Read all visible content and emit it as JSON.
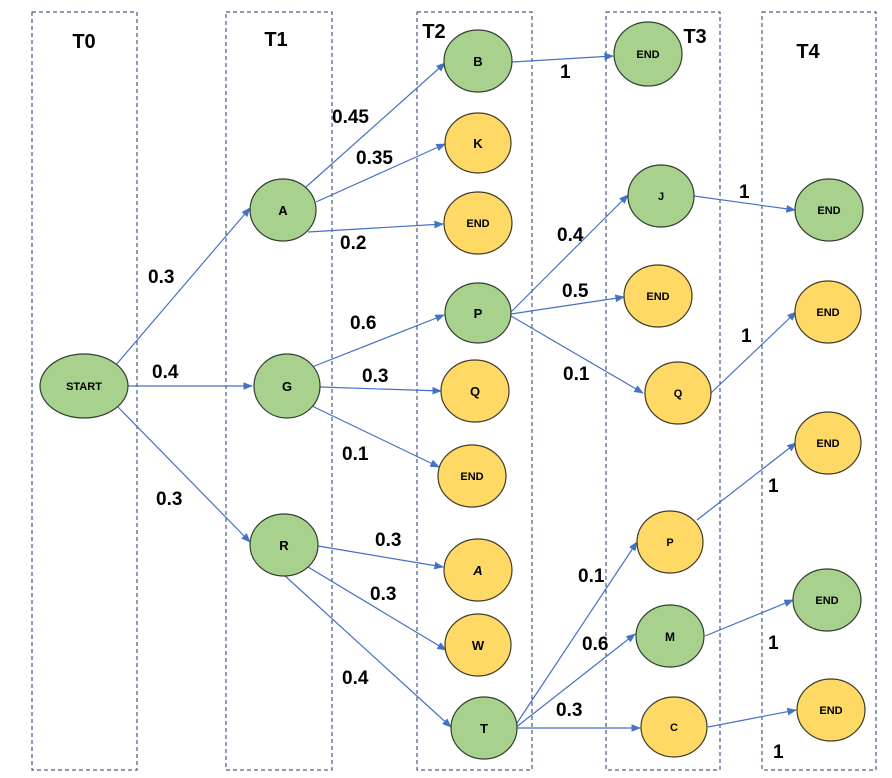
{
  "columns": [
    "T0",
    "T1",
    "T2",
    "T3",
    "T4"
  ],
  "colors": {
    "green": "#a9d18e",
    "yellow": "#ffd966",
    "edge": "#4472c4",
    "column_border": "#1f3864"
  },
  "nodes": {
    "start": {
      "label": "START",
      "color": "green"
    },
    "t1_a": {
      "label": "A",
      "color": "green"
    },
    "t1_g": {
      "label": "G",
      "color": "green"
    },
    "t1_r": {
      "label": "R",
      "color": "green"
    },
    "t2_b": {
      "label": "B",
      "color": "green"
    },
    "t2_k": {
      "label": "K",
      "color": "yellow"
    },
    "t2_end_a": {
      "label": "END",
      "color": "yellow"
    },
    "t2_p": {
      "label": "P",
      "color": "green"
    },
    "t2_q": {
      "label": "Q",
      "color": "yellow"
    },
    "t2_end_g": {
      "label": "END",
      "color": "yellow"
    },
    "t2_a": {
      "label": "A",
      "color": "yellow"
    },
    "t2_w": {
      "label": "W",
      "color": "yellow"
    },
    "t2_t": {
      "label": "T",
      "color": "green"
    },
    "t3_end_b": {
      "label": "END",
      "color": "green"
    },
    "t3_j": {
      "label": "J",
      "color": "green"
    },
    "t3_end_p": {
      "label": "END",
      "color": "yellow"
    },
    "t3_q": {
      "label": "Q",
      "color": "yellow"
    },
    "t3_p": {
      "label": "P",
      "color": "yellow"
    },
    "t3_m": {
      "label": "M",
      "color": "green"
    },
    "t3_c": {
      "label": "C",
      "color": "yellow"
    },
    "t4_end_j": {
      "label": "END",
      "color": "green"
    },
    "t4_end_q": {
      "label": "END",
      "color": "yellow"
    },
    "t4_end_p": {
      "label": "END",
      "color": "yellow"
    },
    "t4_end_m": {
      "label": "END",
      "color": "green"
    },
    "t4_end_c": {
      "label": "END",
      "color": "yellow"
    }
  },
  "edges": [
    {
      "from": "start",
      "to": "t1_a",
      "prob": "0.3"
    },
    {
      "from": "start",
      "to": "t1_g",
      "prob": "0.4"
    },
    {
      "from": "start",
      "to": "t1_r",
      "prob": "0.3"
    },
    {
      "from": "t1_a",
      "to": "t2_b",
      "prob": "0.45"
    },
    {
      "from": "t1_a",
      "to": "t2_k",
      "prob": "0.35"
    },
    {
      "from": "t1_a",
      "to": "t2_end_a",
      "prob": "0.2"
    },
    {
      "from": "t1_g",
      "to": "t2_p",
      "prob": "0.6"
    },
    {
      "from": "t1_g",
      "to": "t2_q",
      "prob": "0.3"
    },
    {
      "from": "t1_g",
      "to": "t2_end_g",
      "prob": "0.1"
    },
    {
      "from": "t1_r",
      "to": "t2_a",
      "prob": "0.3"
    },
    {
      "from": "t1_r",
      "to": "t2_w",
      "prob": "0.3"
    },
    {
      "from": "t1_r",
      "to": "t2_t",
      "prob": "0.4"
    },
    {
      "from": "t2_b",
      "to": "t3_end_b",
      "prob": "1"
    },
    {
      "from": "t2_p",
      "to": "t3_j",
      "prob": "0.4"
    },
    {
      "from": "t2_p",
      "to": "t3_end_p",
      "prob": "0.5"
    },
    {
      "from": "t2_p",
      "to": "t3_q",
      "prob": "0.1"
    },
    {
      "from": "t2_t",
      "to": "t3_p",
      "prob": "0.1"
    },
    {
      "from": "t2_t",
      "to": "t3_m",
      "prob": "0.6"
    },
    {
      "from": "t2_t",
      "to": "t3_c",
      "prob": "0.3"
    },
    {
      "from": "t3_j",
      "to": "t4_end_j",
      "prob": "1"
    },
    {
      "from": "t3_q",
      "to": "t4_end_q",
      "prob": "1"
    },
    {
      "from": "t3_p",
      "to": "t4_end_p",
      "prob": "1"
    },
    {
      "from": "t3_m",
      "to": "t4_end_m",
      "prob": "1"
    },
    {
      "from": "t3_c",
      "to": "t4_end_c",
      "prob": "1"
    }
  ]
}
